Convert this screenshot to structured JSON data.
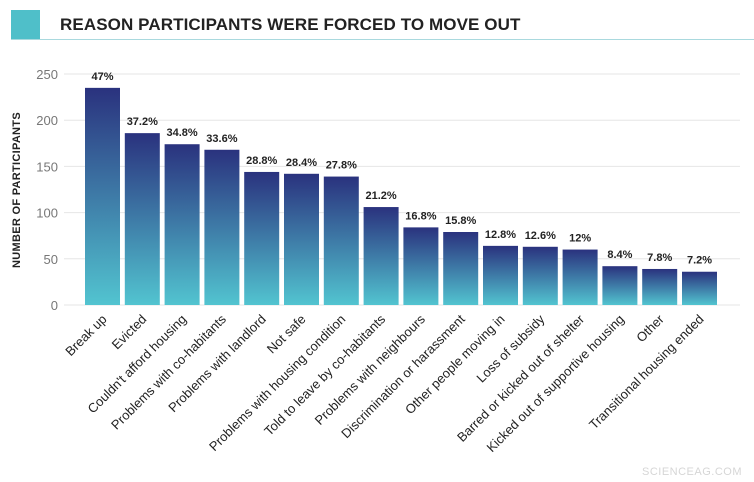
{
  "chart_data": {
    "type": "bar",
    "title": "REASON PARTICIPANTS WERE FORCED TO MOVE OUT",
    "xlabel": "",
    "ylabel": "NUMBER OF PARTICIPANTS",
    "ylim": [
      0,
      250
    ],
    "yticks": [
      0,
      50,
      100,
      150,
      200,
      250
    ],
    "grid": true,
    "colors": {
      "bar_top": "#2a327e",
      "bar_bottom": "#52c4d0",
      "title_accent": "#4fbfc9"
    },
    "categories": [
      "Break up",
      "Evicted",
      "Couldn't afford housing",
      "Problems with co-habitants",
      "Problems with landlord",
      "Not safe",
      "Problems with housing condition",
      "Told to leave by co-habitants",
      "Problems with neighbours",
      "Discrimination or harassment",
      "Other people moving in",
      "Loss of subsidy",
      "Barred or kicked out of shelter",
      "Kicked out of supportive housing",
      "Other",
      "Transitional housing ended"
    ],
    "values": [
      235,
      186,
      174,
      168,
      144,
      142,
      139,
      106,
      84,
      79,
      64,
      63,
      60,
      42,
      39,
      36
    ],
    "data_labels": [
      "47%",
      "37.2%",
      "34.8%",
      "33.6%",
      "28.8%",
      "28.4%",
      "27.8%",
      "21.2%",
      "16.8%",
      "15.8%",
      "12.8%",
      "12.6%",
      "12%",
      "8.4%",
      "7.8%",
      "7.2%"
    ]
  },
  "watermark": "SCIENCEAG.COM"
}
